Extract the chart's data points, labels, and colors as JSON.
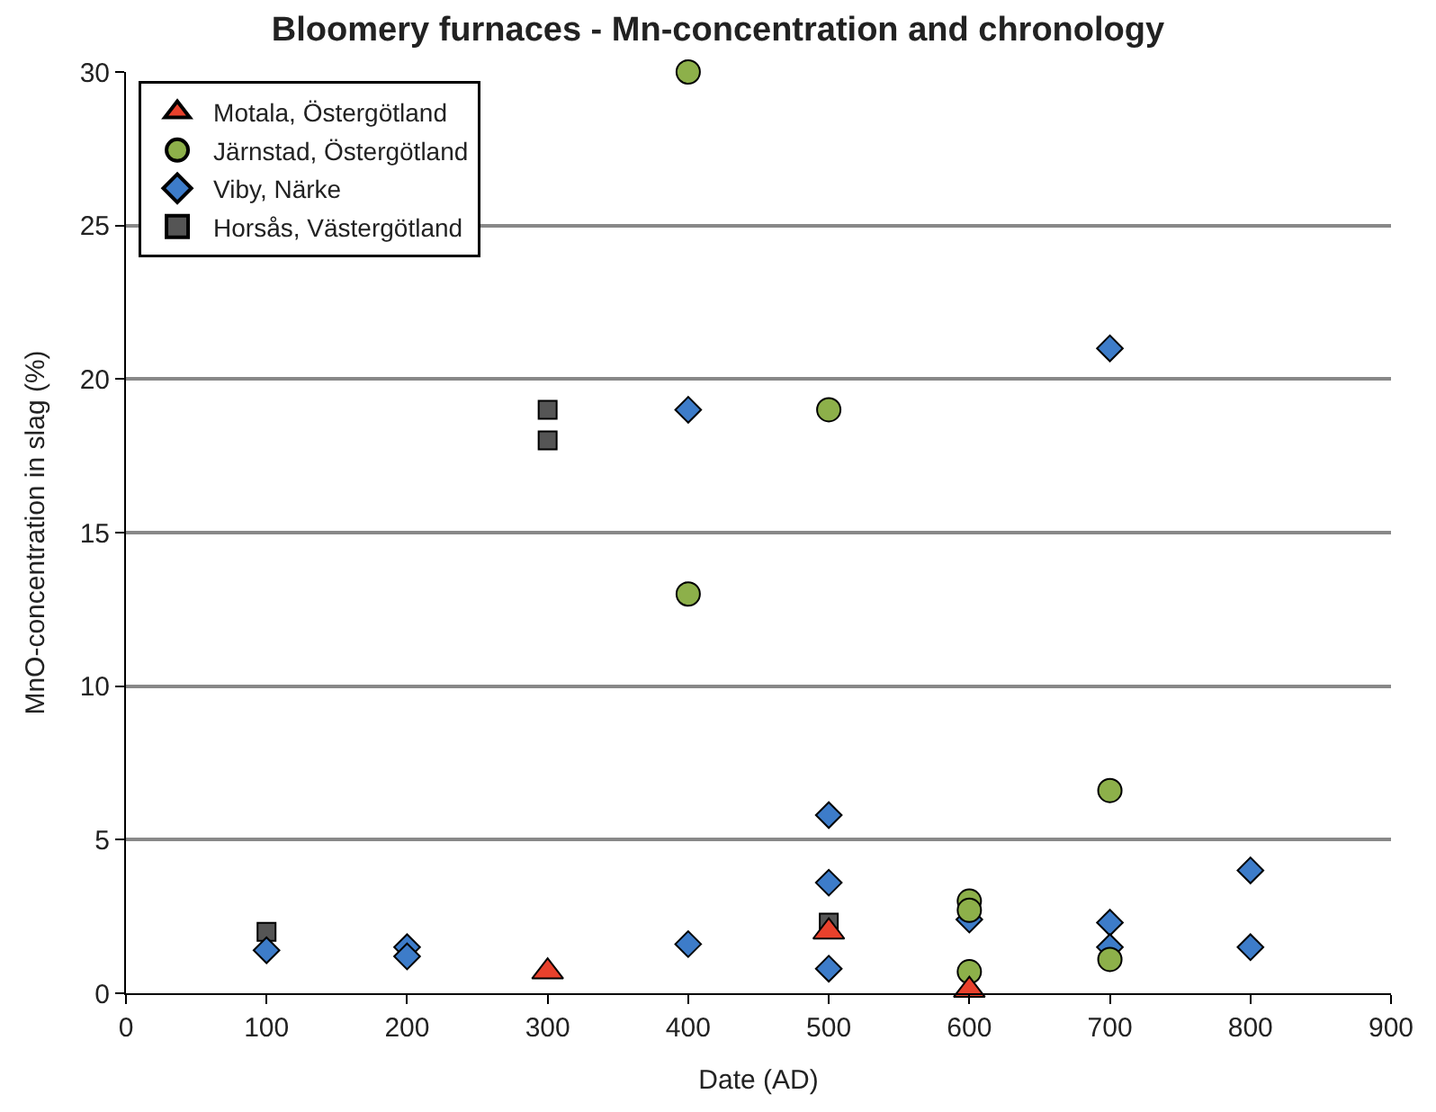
{
  "chart_data": {
    "type": "scatter",
    "title": "Bloomery furnaces - Mn-concentration and chronology",
    "xlabel": "Date (AD)",
    "ylabel": "MnO-concentration in slag (%)",
    "xlim": [
      0,
      900
    ],
    "xticks": [
      0,
      100,
      200,
      300,
      400,
      500,
      600,
      700,
      800,
      900
    ],
    "ylim": [
      0,
      30
    ],
    "yticks": [
      0,
      5,
      10,
      15,
      20,
      25,
      30
    ],
    "grid": "y",
    "legend": "top left",
    "series": [
      {
        "name": "Motala, Östergötland",
        "color": "#e8412c",
        "marker": "triangle",
        "x": [
          300,
          500,
          600
        ],
        "values": [
          0.7,
          2.0,
          0.1
        ]
      },
      {
        "name": "Järnstad, Östergötland",
        "color": "#8db04a",
        "marker": "circle",
        "x": [
          400,
          400,
          500,
          600,
          600,
          600,
          700,
          700
        ],
        "values": [
          30,
          13,
          19,
          3.0,
          2.7,
          0.7,
          6.6,
          1.1
        ]
      },
      {
        "name": "Viby, Närke",
        "color": "#3d7cc9",
        "marker": "diamond",
        "x": [
          100,
          200,
          200,
          400,
          400,
          500,
          500,
          500,
          600,
          700,
          700,
          700,
          800,
          800
        ],
        "values": [
          1.4,
          1.5,
          1.2,
          19,
          1.6,
          5.8,
          3.6,
          0.8,
          2.4,
          21,
          2.3,
          1.5,
          4.0,
          1.5
        ]
      },
      {
        "name": "Horsås, Västergötland",
        "color": "#555555",
        "marker": "square",
        "x": [
          100,
          300,
          300,
          500
        ],
        "values": [
          2.0,
          19,
          18,
          2.3
        ]
      }
    ]
  }
}
